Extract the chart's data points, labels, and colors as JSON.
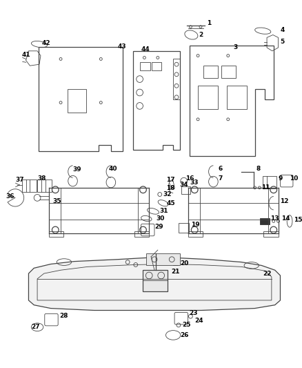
{
  "bg_color": "#ffffff",
  "line_color": "#444444",
  "text_color": "#000000",
  "fig_width": 4.38,
  "fig_height": 5.33,
  "dpi": 100
}
